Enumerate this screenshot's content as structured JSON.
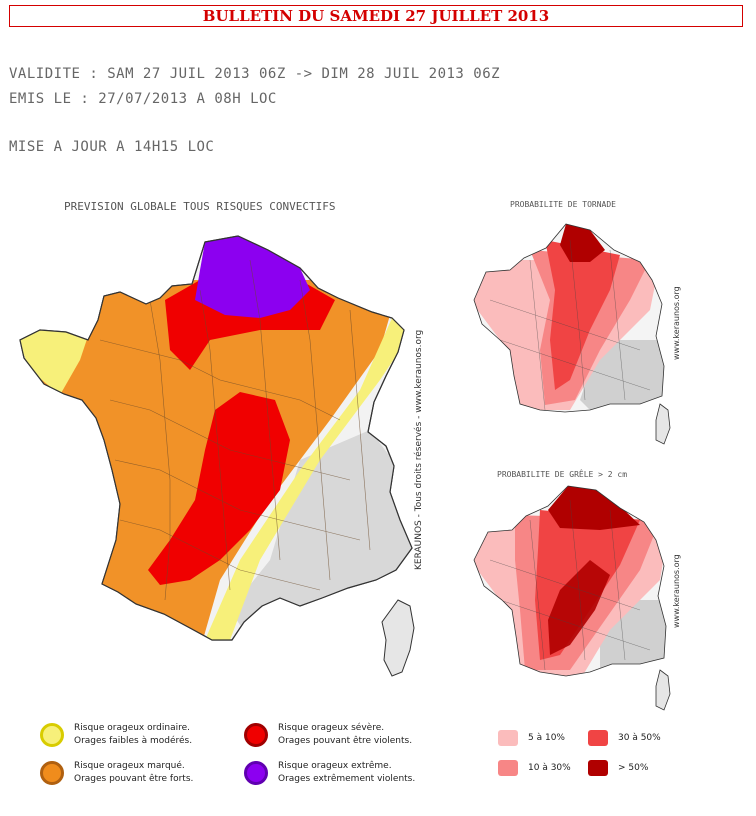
{
  "header": {
    "title": "BULLETIN DU SAMEDI 27 JUILLET 2013",
    "validity": "VALIDITE : SAM 27 JUIL 2013 06Z -> DIM 28 JUIL 2013 06Z",
    "issued": "EMIS LE : 27/07/2013 A 08H LOC",
    "update": "MISE A JOUR A 14H15 LOC"
  },
  "main_map": {
    "caption": "PREVISION GLOBALE TOUS RISQUES CONVECTIFS",
    "watermark": "KERAUNOS - Tous droits réservés - www.keraunos.org"
  },
  "tornado_map": {
    "caption": "PROBABILITE DE TORNADE",
    "watermark": "www.keraunos.org"
  },
  "hail_map": {
    "caption": "PROBABILITE DE GRÊLE > 2 cm",
    "watermark": "www.keraunos.org"
  },
  "risk_legend": [
    {
      "color": "#f7f07a",
      "line1": "Risque orageux ordinaire.",
      "line2": "Orages faibles à modérés."
    },
    {
      "color": "#f08c1c",
      "line1": "Risque orageux marqué.",
      "line2": "Orages pouvant être forts."
    },
    {
      "color": "#f00000",
      "line1": "Risque orageux sévère.",
      "line2": "Orages pouvant être violents."
    },
    {
      "color": "#8c00f0",
      "line1": "Risque orageux extrême.",
      "line2": "Orages extrêmement violents."
    }
  ],
  "prob_legend": [
    {
      "color": "#fbbcbc",
      "label": "5 à 10%"
    },
    {
      "color": "#f78686",
      "label": "10 à 30%"
    },
    {
      "color": "#f04444",
      "label": "30 à 50%"
    },
    {
      "color": "#b00000",
      "label": "> 50%"
    }
  ]
}
